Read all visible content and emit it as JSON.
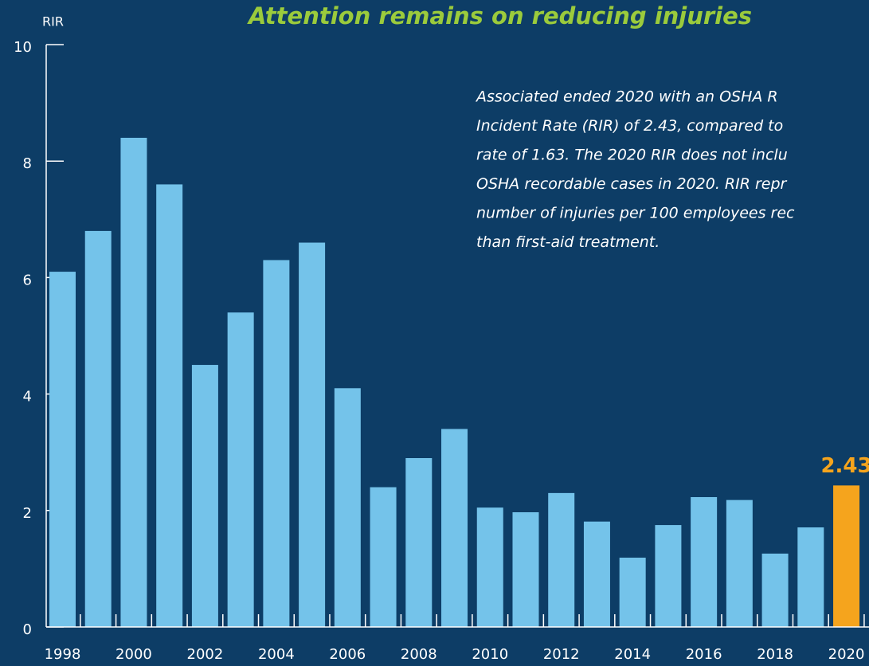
{
  "chart_data": {
    "type": "bar",
    "title": "Attention remains on reducing injuries",
    "y_label": "RIR",
    "annotation": [
      "Associated ended 2020 with an OSHA R",
      "Incident Rate (RIR) of 2.43, compared to",
      "rate of 1.63. The 2020 RIR does not inclu",
      "OSHA recordable cases in 2020. RIR repr",
      "number of injuries per 100 employees rec",
      "than first-aid treatment."
    ],
    "categories": [
      "1998",
      null,
      "2000",
      null,
      "2002",
      null,
      "2004",
      null,
      "2006",
      null,
      "2008",
      null,
      "2010",
      null,
      "2012",
      null,
      "2014",
      null,
      "2016",
      null,
      "2018",
      null,
      "2020"
    ],
    "values": [
      6.1,
      6.8,
      8.4,
      7.6,
      4.5,
      5.4,
      6.3,
      6.6,
      4.1,
      2.4,
      2.9,
      3.4,
      2.05,
      1.97,
      2.3,
      1.81,
      1.19,
      1.75,
      2.23,
      2.18,
      1.26,
      1.71,
      2.43
    ],
    "value_labels": [
      null,
      null,
      null,
      null,
      null,
      null,
      null,
      null,
      null,
      null,
      null,
      null,
      null,
      null,
      null,
      null,
      null,
      null,
      null,
      null,
      null,
      null,
      "2.43"
    ],
    "colors": [
      "#74c3ea",
      "#74c3ea",
      "#74c3ea",
      "#74c3ea",
      "#74c3ea",
      "#74c3ea",
      "#74c3ea",
      "#74c3ea",
      "#74c3ea",
      "#74c3ea",
      "#74c3ea",
      "#74c3ea",
      "#74c3ea",
      "#74c3ea",
      "#74c3ea",
      "#74c3ea",
      "#74c3ea",
      "#74c3ea",
      "#74c3ea",
      "#74c3ea",
      "#74c3ea",
      "#74c3ea",
      "#f5a41d"
    ],
    "ylim": [
      0,
      10
    ],
    "yticks": [
      0,
      2,
      4,
      6,
      8,
      10
    ],
    "grid": false
  }
}
